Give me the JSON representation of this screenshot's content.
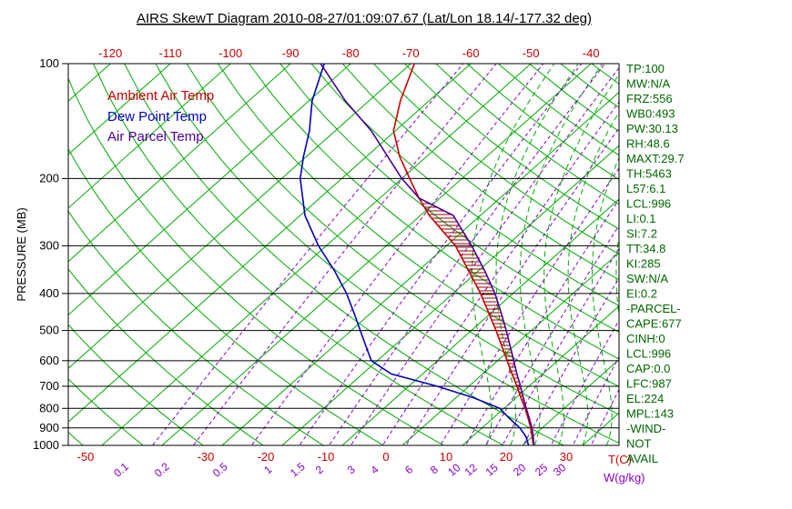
{
  "title": "AIRS SkewT Diagram 2010-08-27/01:09:07.67 (Lat/Lon 18.14/-177.32 deg)",
  "colors": {
    "ambient": "#cc0000",
    "dewpoint": "#0000bb",
    "parcel": "#4b0096",
    "isotherm_green": "#00aa00",
    "mixing_violet": "#8800cc",
    "pressure_black": "#000000",
    "panel_green": "#006600",
    "hatch_dark_red": "#990000"
  },
  "legend": [
    {
      "label": "Ambient Air Temp",
      "color": "#cc0000"
    },
    {
      "label": "Dew Point Temp",
      "color": "#0000bb"
    },
    {
      "label": "Air Parcel Temp",
      "color": "#4b0096"
    }
  ],
  "axes": {
    "pressure_label": "PRESSURE (MB)",
    "pressure_ticks": [
      100,
      200,
      300,
      400,
      500,
      600,
      700,
      800,
      900,
      1000
    ],
    "top_temp_labels": [
      -120,
      -110,
      -100,
      -90,
      -80,
      -70,
      -60,
      -50,
      -40
    ],
    "bottom_temp_labels": [
      -50,
      -30,
      -20,
      -10,
      0,
      10,
      20,
      30
    ],
    "temp_unit_label": "T(C)",
    "mixing_labels": [
      0.1,
      0.2,
      0.5,
      1,
      1.5,
      2,
      3,
      4,
      6,
      8,
      10,
      12,
      15,
      20,
      25,
      30
    ],
    "mixing_unit_label": "W(g/kg)"
  },
  "panel": [
    "TP:100",
    "MW:N/A",
    "FRZ:556",
    "WB0:493",
    "PW:30.13",
    "RH:48.6",
    "MAXT:29.7",
    "TH:5463",
    "L57:6.1",
    "LCL:996",
    "LI:0.1",
    "SI:7.2",
    "TT:34.8",
    "KI:285",
    "SW:N/A",
    "EI:0.2",
    "-PARCEL-",
    "CAPE:677",
    "CINH:0",
    "LCL:996",
    "CAP:0.0",
    "LFC:987",
    "EL:224",
    "MPL:143",
    "-WIND-",
    "NOT",
    "AVAIL"
  ],
  "chart_data": {
    "type": "line",
    "title": "AIRS SkewT Diagram 2010-08-27/01:09:07.67 (Lat/Lon 18.14/-177.32 deg)",
    "xlabel": "T(C)",
    "ylabel": "PRESSURE (MB)",
    "x_axis": "temperature C, skewed 45 degrees",
    "y_axis": "pressure mb, log scale",
    "ylim": [
      1000,
      100
    ],
    "xlim_bottom_row": [
      -55,
      36
    ],
    "grid": {
      "isotherms_C": {
        "min": -120,
        "max": 40,
        "step": 10
      },
      "dry_adiabats_K": {
        "min": 220,
        "max": 460,
        "step": 10
      },
      "moist_adiabats_C": [
        14,
        18,
        22,
        26,
        30,
        34,
        38
      ],
      "mixing_ratio_lines_gkg": [
        0.1,
        0.2,
        0.5,
        1,
        1.5,
        2,
        3,
        4,
        6,
        8,
        10,
        12,
        15,
        20,
        25,
        30
      ]
    },
    "series": [
      {
        "name": "Ambient Air Temp",
        "key": "ambient",
        "color": "#cc0000",
        "points": [
          [
            1000,
            21.8
          ],
          [
            950,
            20.0
          ],
          [
            900,
            18.1
          ],
          [
            850,
            15.9
          ],
          [
            800,
            13.5
          ],
          [
            750,
            10.8
          ],
          [
            700,
            8.0
          ],
          [
            650,
            4.9
          ],
          [
            600,
            1.6
          ],
          [
            550,
            -2.0
          ],
          [
            500,
            -5.9
          ],
          [
            450,
            -10.4
          ],
          [
            400,
            -15.4
          ],
          [
            350,
            -21.5
          ],
          [
            300,
            -28.5
          ],
          [
            250,
            -38.5
          ],
          [
            225,
            -43.5
          ],
          [
            200,
            -48.7
          ],
          [
            175,
            -54.5
          ],
          [
            150,
            -60.3
          ],
          [
            125,
            -64.8
          ],
          [
            100,
            -69.4
          ]
        ]
      },
      {
        "name": "Dew Point Temp",
        "key": "dewpoint",
        "color": "#0000bb",
        "points": [
          [
            1000,
            21.0
          ],
          [
            950,
            19.0
          ],
          [
            900,
            16.3
          ],
          [
            850,
            12.8
          ],
          [
            800,
            9.3
          ],
          [
            750,
            2.9
          ],
          [
            700,
            -5.3
          ],
          [
            650,
            -15.2
          ],
          [
            600,
            -21.0
          ],
          [
            550,
            -24.6
          ],
          [
            500,
            -28.5
          ],
          [
            450,
            -32.8
          ],
          [
            400,
            -37.7
          ],
          [
            350,
            -43.8
          ],
          [
            300,
            -51.3
          ],
          [
            250,
            -59.2
          ],
          [
            200,
            -66.9
          ],
          [
            175,
            -70.5
          ],
          [
            150,
            -74.3
          ],
          [
            125,
            -79.5
          ],
          [
            100,
            -84.4
          ]
        ]
      },
      {
        "name": "Air Parcel Temp",
        "key": "parcel",
        "color": "#4b0096",
        "points": [
          [
            1000,
            21.9
          ],
          [
            950,
            20.2
          ],
          [
            900,
            18.3
          ],
          [
            850,
            16.1
          ],
          [
            800,
            13.7
          ],
          [
            750,
            11.2
          ],
          [
            700,
            8.6
          ],
          [
            650,
            5.7
          ],
          [
            600,
            2.7
          ],
          [
            550,
            -0.6
          ],
          [
            500,
            -4.2
          ],
          [
            450,
            -8.3
          ],
          [
            400,
            -13.0
          ],
          [
            350,
            -18.8
          ],
          [
            300,
            -25.8
          ],
          [
            250,
            -34.5
          ],
          [
            225,
            -43.5
          ],
          [
            200,
            -50.0
          ],
          [
            175,
            -56.5
          ],
          [
            150,
            -64.0
          ],
          [
            125,
            -74.0
          ],
          [
            100,
            -85.0
          ]
        ]
      }
    ],
    "annotations": {
      "cape_hatch": "horizontal hatching between Ambient Air Temp and Air Parcel Temp curves where parcel is warmer, from near surface up to EL (~224 mb)"
    }
  }
}
